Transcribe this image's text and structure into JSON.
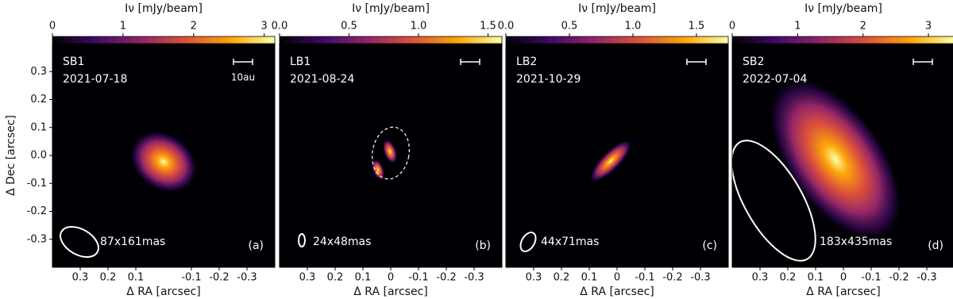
{
  "chart_data": [
    {
      "type": "image",
      "label": "SB1",
      "date": "2021-07-18",
      "beam": "87x161mas",
      "panel": "(a)",
      "scalebar_label": "10au",
      "colorbar_label": "Iν [mJy/beam]",
      "clim": [
        0,
        3.15
      ],
      "cticks": [
        0,
        1,
        2,
        3
      ],
      "xlabel": "Δ RA [arcsec]",
      "xlim": [
        0.4,
        -0.4
      ],
      "xticks": [
        0.3,
        0.2,
        0.1,
        -0.1,
        -0.2,
        -0.3
      ],
      "ylabel": "Δ Dec [arcsec]",
      "ylim": [
        -0.4,
        0.4
      ],
      "yticks": [
        0.3,
        0.2,
        0.1,
        {
          "value": 0,
          "label": "0.0"
        },
        -0.1,
        -0.2,
        -0.3
      ]
    },
    {
      "type": "image",
      "label": "LB1",
      "date": "2021-08-24",
      "beam": "24x48mas",
      "panel": "(b)",
      "colorbar_label": "Iν [mJy/beam]",
      "clim": [
        0,
        1.6
      ],
      "cticks": [
        {
          "value": 0,
          "label": "0.0"
        },
        0.5,
        {
          "value": 1,
          "label": "1.0"
        },
        1.5
      ],
      "xlabel": "Δ RA [arcsec]",
      "xlim": [
        0.4,
        -0.4
      ],
      "xticks": [
        0.3,
        0.2,
        0.1,
        0,
        -0.1,
        -0.2,
        -0.3
      ],
      "ylim": [
        -0.4,
        0.4
      ]
    },
    {
      "type": "image",
      "label": "LB2",
      "date": "2021-10-29",
      "beam": "44x71mas",
      "panel": "(c)",
      "colorbar_label": "Iν [mJy/beam]",
      "clim": [
        0,
        1.75
      ],
      "cticks": [
        {
          "value": 0,
          "label": "0.0"
        },
        0.5,
        {
          "value": 1,
          "label": "1.0"
        },
        1.5
      ],
      "xlabel": "Δ RA [arcsec]",
      "xlim": [
        0.4,
        -0.4
      ],
      "xticks": [
        0.3,
        0.2,
        0.1,
        0,
        -0.1,
        -0.2,
        -0.3
      ],
      "ylim": [
        -0.4,
        0.4
      ]
    },
    {
      "type": "image",
      "label": "SB2",
      "date": "2022-07-04",
      "beam": "183x435mas",
      "panel": "(d)",
      "colorbar_label": "Iν [mJy/beam]",
      "clim": [
        0,
        3.4
      ],
      "cticks": [
        0,
        1,
        2,
        3
      ],
      "xlabel": "Δ RA [arcsec]",
      "xlim": [
        0.4,
        -0.4
      ],
      "xticks": [
        0.3,
        0.2,
        0.1,
        0,
        -0.1,
        -0.2,
        -0.3
      ],
      "ylim": [
        -0.4,
        0.4
      ]
    }
  ]
}
